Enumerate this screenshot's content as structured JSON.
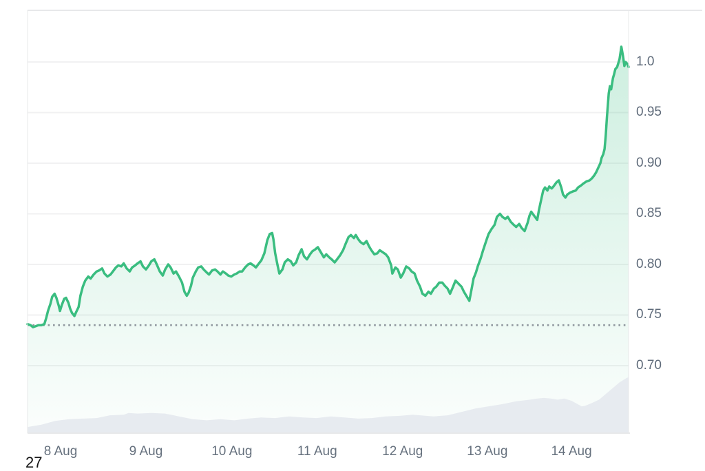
{
  "corner_text": "27",
  "chart_data": {
    "type": "line",
    "title": "",
    "xlabel": "",
    "ylabel": "",
    "x_tick_labels": [
      "8 Aug",
      "9 Aug",
      "10 Aug",
      "11 Aug",
      "12 Aug",
      "13 Aug",
      "14 Aug"
    ],
    "x_tick_t": [
      0.055,
      0.197,
      0.34,
      0.482,
      0.624,
      0.765,
      0.905
    ],
    "y_tick_labels": [
      "1.0",
      "0.95",
      "0.90",
      "0.85",
      "0.80",
      "0.75",
      "0.70"
    ],
    "y_tick_values": [
      1.0,
      0.95,
      0.9,
      0.85,
      0.8,
      0.75,
      0.7
    ],
    "ylim": [
      0.6333,
      1.051
    ],
    "grid": "horizontal",
    "legend": "none",
    "baseline": {
      "value": 0.74,
      "style": "dotted"
    },
    "colors": {
      "line": "#3abd80",
      "fill_top": "rgba(61,191,132,0.26)",
      "fill_bottom": "rgba(61,191,132,0.02)",
      "volume": "#e7ebf0",
      "grid": "#f1f1f2",
      "border": "#e7e8ea",
      "dotted": "#8f979e",
      "axis_text": "#5f6b7a"
    },
    "price_series": {
      "name": "price",
      "points": [
        [
          0,
          0.741
        ],
        [
          0.005,
          0.74
        ],
        [
          0.009,
          0.738
        ],
        [
          0.014,
          0.739
        ],
        [
          0.018,
          0.74
        ],
        [
          0.023,
          0.74
        ],
        [
          0.028,
          0.741
        ],
        [
          0.031,
          0.747
        ],
        [
          0.034,
          0.754
        ],
        [
          0.038,
          0.761
        ],
        [
          0.041,
          0.768
        ],
        [
          0.045,
          0.771
        ],
        [
          0.048,
          0.767
        ],
        [
          0.052,
          0.759
        ],
        [
          0.054,
          0.754
        ],
        [
          0.057,
          0.76
        ],
        [
          0.061,
          0.766
        ],
        [
          0.064,
          0.767
        ],
        [
          0.068,
          0.762
        ],
        [
          0.071,
          0.756
        ],
        [
          0.074,
          0.752
        ],
        [
          0.078,
          0.749
        ],
        [
          0.081,
          0.753
        ],
        [
          0.085,
          0.758
        ],
        [
          0.088,
          0.769
        ],
        [
          0.092,
          0.778
        ],
        [
          0.096,
          0.784
        ],
        [
          0.101,
          0.788
        ],
        [
          0.105,
          0.786
        ],
        [
          0.11,
          0.79
        ],
        [
          0.115,
          0.793
        ],
        [
          0.119,
          0.794
        ],
        [
          0.124,
          0.796
        ],
        [
          0.128,
          0.791
        ],
        [
          0.133,
          0.788
        ],
        [
          0.138,
          0.79
        ],
        [
          0.142,
          0.793
        ],
        [
          0.147,
          0.797
        ],
        [
          0.151,
          0.799
        ],
        [
          0.156,
          0.798
        ],
        [
          0.16,
          0.801
        ],
        [
          0.165,
          0.796
        ],
        [
          0.17,
          0.793
        ],
        [
          0.174,
          0.797
        ],
        [
          0.179,
          0.799
        ],
        [
          0.183,
          0.801
        ],
        [
          0.188,
          0.803
        ],
        [
          0.192,
          0.798
        ],
        [
          0.197,
          0.795
        ],
        [
          0.202,
          0.799
        ],
        [
          0.206,
          0.803
        ],
        [
          0.211,
          0.805
        ],
        [
          0.215,
          0.8
        ],
        [
          0.22,
          0.793
        ],
        [
          0.225,
          0.789
        ],
        [
          0.229,
          0.795
        ],
        [
          0.234,
          0.8
        ],
        [
          0.238,
          0.797
        ],
        [
          0.243,
          0.791
        ],
        [
          0.247,
          0.793
        ],
        [
          0.252,
          0.788
        ],
        [
          0.257,
          0.782
        ],
        [
          0.261,
          0.773
        ],
        [
          0.265,
          0.769
        ],
        [
          0.268,
          0.772
        ],
        [
          0.272,
          0.779
        ],
        [
          0.275,
          0.787
        ],
        [
          0.28,
          0.793
        ],
        [
          0.284,
          0.797
        ],
        [
          0.289,
          0.798
        ],
        [
          0.293,
          0.795
        ],
        [
          0.298,
          0.792
        ],
        [
          0.302,
          0.79
        ],
        [
          0.307,
          0.794
        ],
        [
          0.312,
          0.795
        ],
        [
          0.316,
          0.793
        ],
        [
          0.321,
          0.79
        ],
        [
          0.325,
          0.793
        ],
        [
          0.33,
          0.791
        ],
        [
          0.334,
          0.789
        ],
        [
          0.339,
          0.788
        ],
        [
          0.344,
          0.79
        ],
        [
          0.348,
          0.791
        ],
        [
          0.353,
          0.793
        ],
        [
          0.357,
          0.793
        ],
        [
          0.362,
          0.797
        ],
        [
          0.367,
          0.8
        ],
        [
          0.371,
          0.801
        ],
        [
          0.376,
          0.799
        ],
        [
          0.38,
          0.797
        ],
        [
          0.385,
          0.801
        ],
        [
          0.389,
          0.804
        ],
        [
          0.394,
          0.811
        ],
        [
          0.399,
          0.824
        ],
        [
          0.403,
          0.83
        ],
        [
          0.407,
          0.831
        ],
        [
          0.409,
          0.825
        ],
        [
          0.412,
          0.811
        ],
        [
          0.416,
          0.799
        ],
        [
          0.419,
          0.791
        ],
        [
          0.424,
          0.795
        ],
        [
          0.428,
          0.802
        ],
        [
          0.433,
          0.805
        ],
        [
          0.438,
          0.803
        ],
        [
          0.442,
          0.799
        ],
        [
          0.447,
          0.802
        ],
        [
          0.451,
          0.809
        ],
        [
          0.456,
          0.815
        ],
        [
          0.46,
          0.808
        ],
        [
          0.465,
          0.805
        ],
        [
          0.47,
          0.81
        ],
        [
          0.474,
          0.813
        ],
        [
          0.479,
          0.815
        ],
        [
          0.483,
          0.817
        ],
        [
          0.488,
          0.812
        ],
        [
          0.493,
          0.807
        ],
        [
          0.497,
          0.81
        ],
        [
          0.502,
          0.807
        ],
        [
          0.506,
          0.805
        ],
        [
          0.511,
          0.802
        ],
        [
          0.515,
          0.805
        ],
        [
          0.52,
          0.809
        ],
        [
          0.525,
          0.814
        ],
        [
          0.529,
          0.82
        ],
        [
          0.534,
          0.827
        ],
        [
          0.538,
          0.829
        ],
        [
          0.543,
          0.826
        ],
        [
          0.546,
          0.829
        ],
        [
          0.55,
          0.825
        ],
        [
          0.554,
          0.822
        ],
        [
          0.559,
          0.82
        ],
        [
          0.564,
          0.823
        ],
        [
          0.568,
          0.818
        ],
        [
          0.572,
          0.814
        ],
        [
          0.577,
          0.81
        ],
        [
          0.582,
          0.811
        ],
        [
          0.586,
          0.814
        ],
        [
          0.591,
          0.812
        ],
        [
          0.596,
          0.81
        ],
        [
          0.6,
          0.807
        ],
        [
          0.605,
          0.799
        ],
        [
          0.607,
          0.791
        ],
        [
          0.612,
          0.797
        ],
        [
          0.616,
          0.795
        ],
        [
          0.621,
          0.787
        ],
        [
          0.625,
          0.791
        ],
        [
          0.63,
          0.798
        ],
        [
          0.635,
          0.796
        ],
        [
          0.639,
          0.793
        ],
        [
          0.644,
          0.791
        ],
        [
          0.648,
          0.784
        ],
        [
          0.653,
          0.778
        ],
        [
          0.657,
          0.771
        ],
        [
          0.662,
          0.769
        ],
        [
          0.667,
          0.773
        ],
        [
          0.671,
          0.771
        ],
        [
          0.676,
          0.776
        ],
        [
          0.68,
          0.778
        ],
        [
          0.685,
          0.782
        ],
        [
          0.69,
          0.782
        ],
        [
          0.694,
          0.779
        ],
        [
          0.699,
          0.776
        ],
        [
          0.703,
          0.771
        ],
        [
          0.708,
          0.778
        ],
        [
          0.712,
          0.784
        ],
        [
          0.717,
          0.781
        ],
        [
          0.722,
          0.778
        ],
        [
          0.726,
          0.773
        ],
        [
          0.731,
          0.768
        ],
        [
          0.735,
          0.764
        ],
        [
          0.739,
          0.776
        ],
        [
          0.742,
          0.786
        ],
        [
          0.746,
          0.792
        ],
        [
          0.749,
          0.798
        ],
        [
          0.754,
          0.806
        ],
        [
          0.758,
          0.814
        ],
        [
          0.763,
          0.823
        ],
        [
          0.767,
          0.83
        ],
        [
          0.772,
          0.835
        ],
        [
          0.777,
          0.839
        ],
        [
          0.781,
          0.847
        ],
        [
          0.786,
          0.85
        ],
        [
          0.79,
          0.847
        ],
        [
          0.795,
          0.845
        ],
        [
          0.799,
          0.847
        ],
        [
          0.804,
          0.842
        ],
        [
          0.809,
          0.839
        ],
        [
          0.813,
          0.837
        ],
        [
          0.818,
          0.84
        ],
        [
          0.822,
          0.836
        ],
        [
          0.827,
          0.833
        ],
        [
          0.832,
          0.841
        ],
        [
          0.835,
          0.848
        ],
        [
          0.838,
          0.852
        ],
        [
          0.843,
          0.848
        ],
        [
          0.848,
          0.844
        ],
        [
          0.851,
          0.854
        ],
        [
          0.855,
          0.865
        ],
        [
          0.858,
          0.873
        ],
        [
          0.861,
          0.876
        ],
        [
          0.865,
          0.873
        ],
        [
          0.868,
          0.877
        ],
        [
          0.872,
          0.875
        ],
        [
          0.875,
          0.877
        ],
        [
          0.88,
          0.881
        ],
        [
          0.884,
          0.883
        ],
        [
          0.888,
          0.876
        ],
        [
          0.891,
          0.869
        ],
        [
          0.895,
          0.866
        ],
        [
          0.898,
          0.869
        ],
        [
          0.903,
          0.871
        ],
        [
          0.907,
          0.872
        ],
        [
          0.912,
          0.873
        ],
        [
          0.916,
          0.876
        ],
        [
          0.921,
          0.878
        ],
        [
          0.925,
          0.88
        ],
        [
          0.93,
          0.882
        ],
        [
          0.935,
          0.883
        ],
        [
          0.939,
          0.885
        ],
        [
          0.943,
          0.888
        ],
        [
          0.946,
          0.891
        ],
        [
          0.95,
          0.896
        ],
        [
          0.953,
          0.9
        ],
        [
          0.955,
          0.905
        ],
        [
          0.958,
          0.909
        ],
        [
          0.96,
          0.914
        ],
        [
          0.962,
          0.927
        ],
        [
          0.964,
          0.946
        ],
        [
          0.967,
          0.969
        ],
        [
          0.969,
          0.976
        ],
        [
          0.971,
          0.973
        ],
        [
          0.974,
          0.984
        ],
        [
          0.976,
          0.988
        ],
        [
          0.978,
          0.993
        ],
        [
          0.981,
          0.995
        ],
        [
          0.983,
          0.999
        ],
        [
          0.985,
          1.003
        ],
        [
          0.987,
          1.011
        ],
        [
          0.988,
          1.015
        ],
        [
          0.991,
          1.005
        ],
        [
          0.993,
          0.996
        ],
        [
          0.995,
          1.0
        ],
        [
          0.998,
          0.998
        ],
        [
          1,
          0.995
        ]
      ]
    },
    "volume_series": {
      "name": "volume",
      "max_height_frac": 0.132,
      "points": [
        [
          0,
          0.11
        ],
        [
          0.023,
          0.15
        ],
        [
          0.046,
          0.22
        ],
        [
          0.069,
          0.25
        ],
        [
          0.092,
          0.26
        ],
        [
          0.115,
          0.27
        ],
        [
          0.137,
          0.32
        ],
        [
          0.16,
          0.33
        ],
        [
          0.168,
          0.36
        ],
        [
          0.183,
          0.35
        ],
        [
          0.206,
          0.36
        ],
        [
          0.229,
          0.35
        ],
        [
          0.252,
          0.3
        ],
        [
          0.275,
          0.25
        ],
        [
          0.298,
          0.23
        ],
        [
          0.321,
          0.25
        ],
        [
          0.344,
          0.23
        ],
        [
          0.367,
          0.26
        ],
        [
          0.389,
          0.28
        ],
        [
          0.412,
          0.27
        ],
        [
          0.435,
          0.3
        ],
        [
          0.458,
          0.28
        ],
        [
          0.481,
          0.27
        ],
        [
          0.504,
          0.3
        ],
        [
          0.527,
          0.28
        ],
        [
          0.55,
          0.26
        ],
        [
          0.573,
          0.27
        ],
        [
          0.596,
          0.3
        ],
        [
          0.619,
          0.31
        ],
        [
          0.641,
          0.33
        ],
        [
          0.653,
          0.32
        ],
        [
          0.676,
          0.3
        ],
        [
          0.699,
          0.32
        ],
        [
          0.722,
          0.38
        ],
        [
          0.745,
          0.44
        ],
        [
          0.767,
          0.48
        ],
        [
          0.79,
          0.52
        ],
        [
          0.813,
          0.57
        ],
        [
          0.836,
          0.6
        ],
        [
          0.848,
          0.62
        ],
        [
          0.859,
          0.63
        ],
        [
          0.871,
          0.62
        ],
        [
          0.882,
          0.6
        ],
        [
          0.893,
          0.62
        ],
        [
          0.905,
          0.58
        ],
        [
          0.922,
          0.48
        ],
        [
          0.928,
          0.49
        ],
        [
          0.939,
          0.54
        ],
        [
          0.951,
          0.6
        ],
        [
          0.962,
          0.7
        ],
        [
          0.974,
          0.81
        ],
        [
          0.985,
          0.91
        ],
        [
          0.997,
          0.99
        ],
        [
          1,
          1.0
        ]
      ]
    }
  }
}
